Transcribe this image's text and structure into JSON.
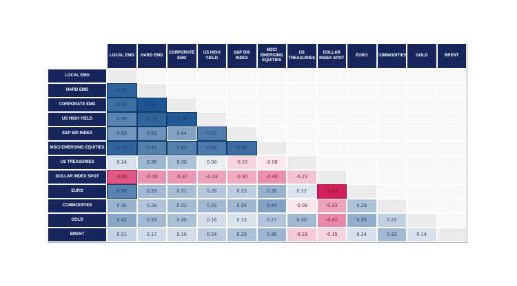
{
  "chart_data": {
    "type": "heatmap",
    "subtype": "correlation-matrix-lower-triangle",
    "labels": [
      "LOCAL EMD",
      "HARD EMD",
      "CORPORATE EMD",
      "US HIGH YIELD",
      "S&P 500 INDEX",
      "MSCI EMERGING EQUITIES",
      "US TREASURIES",
      "DOLLAR INDEX SPOT",
      "EURO",
      "COMMODITIES",
      "GOLD",
      "BRENT"
    ],
    "rows": [
      {
        "label": "LOCAL EMD",
        "values": []
      },
      {
        "label": "HARD EMD",
        "values": [
          0.74
        ]
      },
      {
        "label": "CORPORATE EMD",
        "values": [
          0.68,
          0.88
        ]
      },
      {
        "label": "US HIGH YIELD",
        "values": [
          0.58,
          0.73,
          0.78
        ]
      },
      {
        "label": "S&P 500 INDEX",
        "values": [
          0.5,
          0.51,
          0.44,
          0.62
        ]
      },
      {
        "label": "MSCI EMERGING EQUITIES",
        "values": [
          0.73,
          0.6,
          0.6,
          0.63,
          0.69
        ]
      },
      {
        "label": "US TREASURIES",
        "values": [
          0.14,
          0.35,
          0.3,
          0.08,
          -0.15,
          -0.08
        ]
      },
      {
        "label": "DOLLAR INDEX SPOT",
        "values": [
          -0.6,
          -0.39,
          -0.37,
          -0.33,
          -0.3,
          -0.4,
          -0.21
        ]
      },
      {
        "label": "EURO",
        "values": [
          0.58,
          0.33,
          0.31,
          0.26,
          0.23,
          0.36,
          0.12,
          -0.93
        ]
      },
      {
        "label": "COMMODITIES",
        "values": [
          0.36,
          0.28,
          0.32,
          0.33,
          0.34,
          0.44,
          -0.09,
          -0.33,
          0.29
        ]
      },
      {
        "label": "GOLD",
        "values": [
          0.42,
          0.33,
          0.3,
          0.16,
          0.13,
          0.27,
          0.33,
          -0.42,
          0.39,
          0.22
        ]
      },
      {
        "label": "BRENT",
        "values": [
          0.21,
          0.17,
          0.16,
          0.24,
          0.29,
          0.35,
          -0.19,
          -0.15,
          0.14,
          0.33,
          0.14
        ]
      }
    ],
    "value_decimals": 2,
    "value_range": [
      -1,
      1
    ],
    "legend": "none",
    "style": {
      "header_bg": "#16265c",
      "positive_max_color": "#1c5693",
      "negative_max_color": "#d41f5b",
      "neutral_color": "#ffffff",
      "color_scale_saturation_point": 0.8,
      "strong_border_threshold": 0.5,
      "strong_positive_border": "#0f3a6b",
      "strong_negative_border": "#a8174a",
      "diagonal_bg": "#ebebeb",
      "empty_bg": "#f8f8f8",
      "positive_text": "#1f3864",
      "negative_text": "#6e1630",
      "header_text": "#ffffff",
      "outer_border": "#a3a3a3"
    }
  }
}
